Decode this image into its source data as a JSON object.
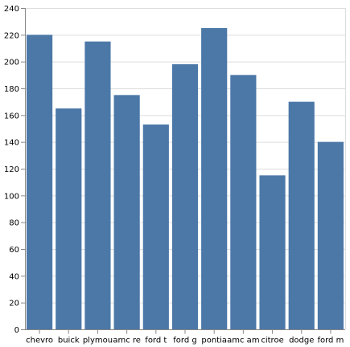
{
  "chart_data": {
    "type": "bar",
    "categories": [
      "chevro",
      "buick",
      "plymou",
      "amc re",
      "ford t",
      "ford g",
      "pontia",
      "amc am",
      "citroe",
      "dodge",
      "ford m"
    ],
    "values": [
      220,
      165,
      215,
      175,
      153,
      198,
      225,
      190,
      115,
      170,
      140
    ],
    "title": "",
    "xlabel": "",
    "ylabel": "",
    "ylim": [
      0,
      240
    ],
    "yticks": [
      0,
      20,
      40,
      60,
      80,
      100,
      120,
      140,
      160,
      180,
      200,
      220,
      240
    ],
    "grid": true,
    "legend": "none",
    "colors": {
      "bar": "#4c78a8",
      "grid": "#dddddd",
      "axis": "#888888"
    }
  }
}
